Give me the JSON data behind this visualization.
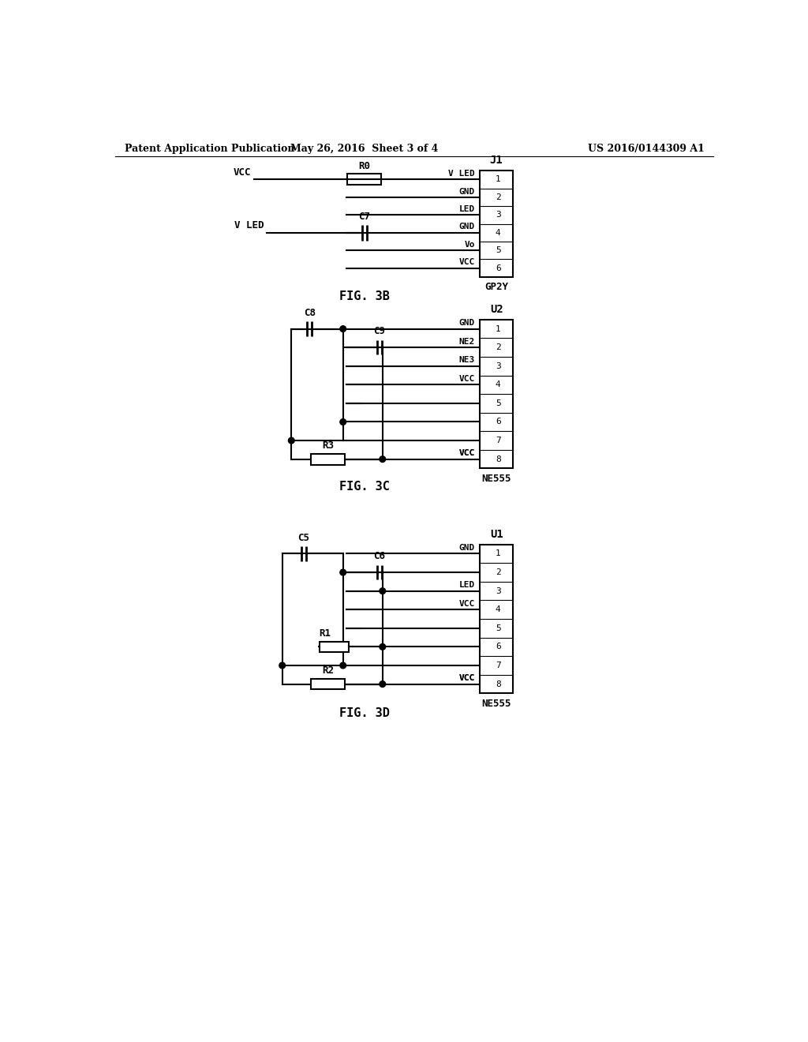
{
  "bg_color": "#ffffff",
  "header_left": "Patent Application Publication",
  "header_mid": "May 26, 2016  Sheet 3 of 4",
  "header_right": "US 2016/0144309 A1",
  "fig3b_label": "FIG. 3B",
  "fig3c_label": "FIG. 3C",
  "fig3d_label": "FIG. 3D",
  "line_color": "#000000",
  "lw": 1.5
}
